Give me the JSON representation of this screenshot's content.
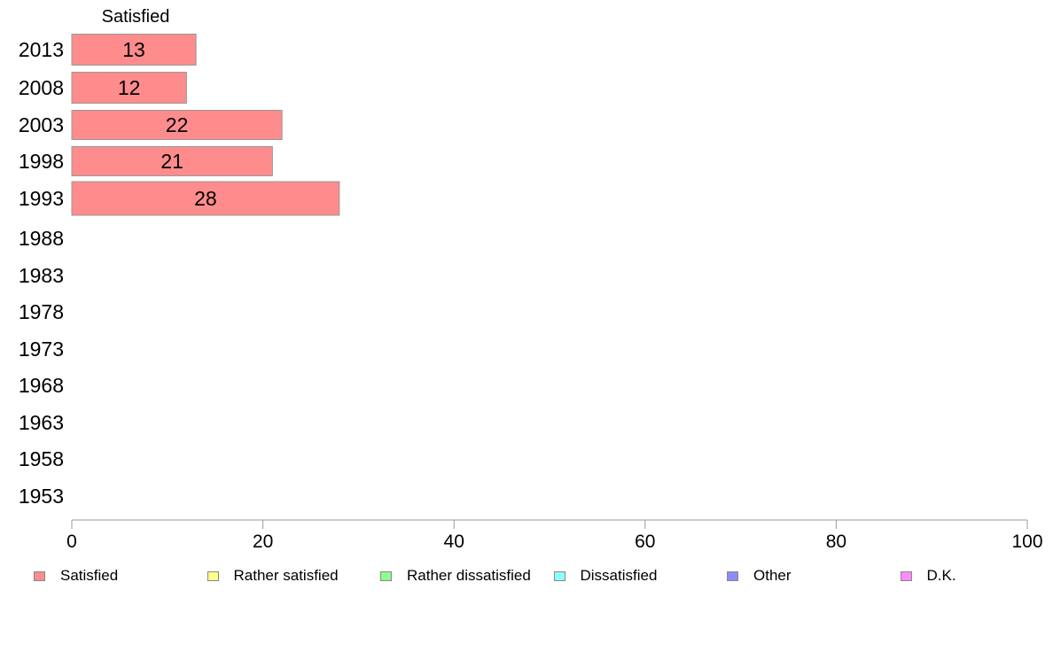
{
  "chart_data": {
    "type": "bar",
    "orientation": "horizontal",
    "stacked": true,
    "categories": [
      "2013",
      "2008",
      "2003",
      "1998",
      "1993",
      "1988",
      "1983",
      "1978",
      "1973",
      "1968",
      "1963",
      "1958",
      "1953"
    ],
    "series": [
      {
        "name": "Satisfied",
        "color": "#ff8c8c",
        "values": [
          13,
          12,
          22,
          21,
          28,
          null,
          null,
          null,
          null,
          null,
          null,
          null,
          null
        ]
      },
      {
        "name": "Rather satisfied",
        "color": "#ffff8c",
        "values": [
          null,
          null,
          null,
          null,
          null,
          null,
          null,
          null,
          null,
          null,
          null,
          null,
          null
        ]
      },
      {
        "name": "Rather dissatisfied",
        "color": "#8cff8c",
        "values": [
          null,
          null,
          null,
          null,
          null,
          null,
          null,
          null,
          null,
          null,
          null,
          null,
          null
        ]
      },
      {
        "name": "Dissatisfied",
        "color": "#8cffff",
        "values": [
          null,
          null,
          null,
          null,
          null,
          null,
          null,
          null,
          null,
          null,
          null,
          null,
          null
        ]
      },
      {
        "name": "Other",
        "color": "#8c8cff",
        "values": [
          null,
          null,
          null,
          null,
          null,
          null,
          null,
          null,
          null,
          null,
          null,
          null,
          null
        ]
      },
      {
        "name": "D.K.",
        "color": "#ff8cff",
        "values": [
          null,
          null,
          null,
          null,
          null,
          null,
          null,
          null,
          null,
          null,
          null,
          null,
          null
        ]
      }
    ],
    "column_header": "Satisfied",
    "xlim": [
      0,
      100
    ],
    "xticks": [
      "0",
      "20",
      "40",
      "60",
      "80",
      "100"
    ],
    "grid": false,
    "legend_position": "bottom"
  }
}
